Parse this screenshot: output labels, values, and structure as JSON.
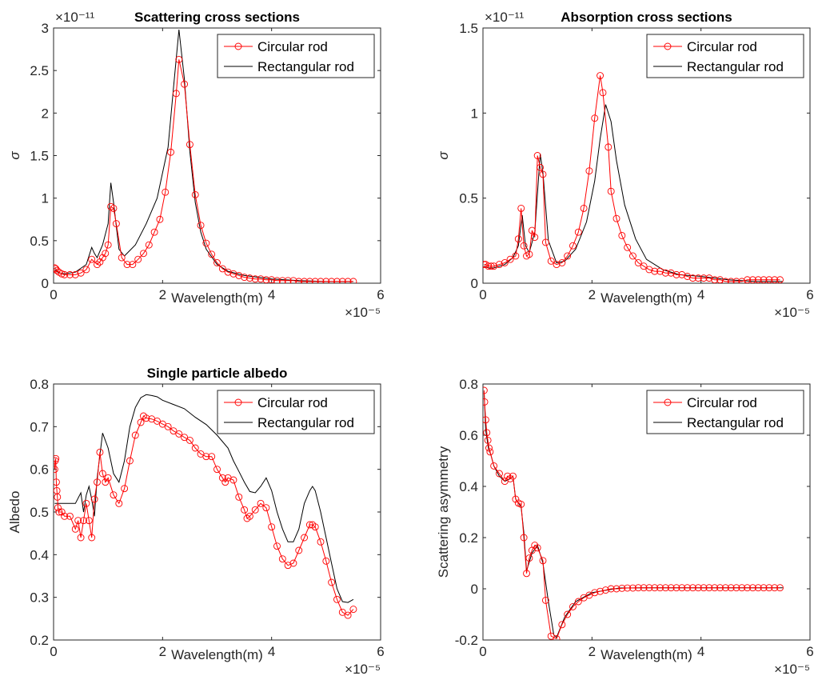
{
  "colors": {
    "circular": "#ff0000",
    "rectangular": "#000000",
    "axis": "#262626",
    "background": "#ffffff"
  },
  "chart_data": [
    {
      "type": "line",
      "title": "Scattering cross sections",
      "xlabel": "Wavelength(m)",
      "ylabel": "σ",
      "x_exponent": "×10⁻⁵",
      "y_exponent": "×10⁻¹¹",
      "xlim": [
        0,
        6
      ],
      "ylim": [
        0,
        3
      ],
      "xticks": [
        "0",
        "2",
        "4",
        "6"
      ],
      "yticks": [
        "0",
        "0.5",
        "1",
        "1.5",
        "2",
        "2.5",
        "3"
      ],
      "legend": "top-right",
      "series": [
        {
          "name": "Circular rod",
          "color": "#ff0000",
          "marker": "circle",
          "x": [
            0.02,
            0.04,
            0.06,
            0.1,
            0.15,
            0.2,
            0.3,
            0.4,
            0.5,
            0.6,
            0.7,
            0.8,
            0.85,
            0.9,
            0.95,
            1.0,
            1.05,
            1.1,
            1.15,
            1.25,
            1.35,
            1.45,
            1.55,
            1.65,
            1.75,
            1.85,
            1.95,
            2.05,
            2.15,
            2.25,
            2.3,
            2.4,
            2.5,
            2.6,
            2.7,
            2.8,
            2.9,
            3.0,
            3.1,
            3.2,
            3.3,
            3.4,
            3.5,
            3.6,
            3.7,
            3.8,
            3.9,
            4.0,
            4.1,
            4.2,
            4.3,
            4.4,
            4.5,
            4.6,
            4.7,
            4.8,
            4.9,
            5.0,
            5.1,
            5.2,
            5.3,
            5.4,
            5.5
          ],
          "y": [
            0.18,
            0.17,
            0.15,
            0.13,
            0.11,
            0.1,
            0.1,
            0.1,
            0.12,
            0.16,
            0.28,
            0.22,
            0.25,
            0.3,
            0.35,
            0.45,
            0.9,
            0.88,
            0.7,
            0.3,
            0.22,
            0.22,
            0.28,
            0.35,
            0.45,
            0.6,
            0.75,
            1.07,
            1.54,
            2.23,
            2.63,
            2.34,
            1.63,
            1.04,
            0.68,
            0.47,
            0.34,
            0.24,
            0.17,
            0.13,
            0.11,
            0.09,
            0.07,
            0.06,
            0.05,
            0.05,
            0.04,
            0.04,
            0.03,
            0.03,
            0.03,
            0.03,
            0.02,
            0.02,
            0.02,
            0.02,
            0.02,
            0.02,
            0.02,
            0.02,
            0.02,
            0.02,
            0.02
          ]
        },
        {
          "name": "Rectangular rod",
          "color": "#000000",
          "marker": "none",
          "x": [
            0.02,
            0.1,
            0.2,
            0.4,
            0.6,
            0.7,
            0.75,
            0.8,
            0.9,
            1.0,
            1.05,
            1.1,
            1.2,
            1.3,
            1.5,
            1.7,
            1.9,
            2.1,
            2.2,
            2.3,
            2.4,
            2.5,
            2.6,
            2.7,
            2.8,
            3.0,
            3.2,
            3.5,
            4.0,
            4.5,
            5.0,
            5.5
          ],
          "y": [
            0.16,
            0.12,
            0.11,
            0.13,
            0.22,
            0.42,
            0.35,
            0.3,
            0.45,
            0.7,
            1.18,
            0.95,
            0.4,
            0.32,
            0.45,
            0.7,
            1.0,
            1.6,
            2.3,
            2.98,
            2.4,
            1.55,
            0.95,
            0.6,
            0.4,
            0.22,
            0.14,
            0.09,
            0.05,
            0.03,
            0.02,
            0.02
          ]
        }
      ]
    },
    {
      "type": "line",
      "title": "Absorption cross sections",
      "xlabel": "Wavelength(m)",
      "ylabel": "σ",
      "x_exponent": "×10⁻⁵",
      "y_exponent": "×10⁻¹¹",
      "xlim": [
        0,
        6
      ],
      "ylim": [
        0,
        1.5
      ],
      "xticks": [
        "0",
        "2",
        "4",
        "6"
      ],
      "yticks": [
        "0",
        "0.5",
        "1",
        "1.5"
      ],
      "legend": "top-right",
      "series": [
        {
          "name": "Circular rod",
          "color": "#ff0000",
          "marker": "circle",
          "x": [
            0.02,
            0.05,
            0.1,
            0.15,
            0.2,
            0.3,
            0.4,
            0.5,
            0.6,
            0.65,
            0.7,
            0.75,
            0.8,
            0.85,
            0.9,
            0.95,
            1.0,
            1.05,
            1.1,
            1.15,
            1.25,
            1.35,
            1.45,
            1.55,
            1.65,
            1.75,
            1.85,
            1.95,
            2.05,
            2.15,
            2.2,
            2.3,
            2.35,
            2.45,
            2.55,
            2.65,
            2.75,
            2.85,
            2.95,
            3.05,
            3.15,
            3.25,
            3.35,
            3.45,
            3.55,
            3.65,
            3.75,
            3.85,
            3.95,
            4.05,
            4.15,
            4.25,
            4.35,
            4.45,
            4.55,
            4.65,
            4.75,
            4.85,
            4.95,
            5.05,
            5.15,
            5.25,
            5.35,
            5.45
          ],
          "y": [
            0.11,
            0.11,
            0.1,
            0.1,
            0.1,
            0.11,
            0.12,
            0.14,
            0.16,
            0.26,
            0.44,
            0.22,
            0.16,
            0.17,
            0.31,
            0.27,
            0.75,
            0.68,
            0.64,
            0.24,
            0.13,
            0.11,
            0.12,
            0.16,
            0.22,
            0.3,
            0.44,
            0.66,
            0.97,
            1.22,
            1.12,
            0.8,
            0.54,
            0.38,
            0.28,
            0.21,
            0.16,
            0.12,
            0.1,
            0.08,
            0.07,
            0.07,
            0.06,
            0.06,
            0.05,
            0.05,
            0.04,
            0.03,
            0.03,
            0.03,
            0.03,
            0.02,
            0.02,
            0.01,
            0.01,
            0.01,
            0.01,
            0.02,
            0.02,
            0.02,
            0.02,
            0.02,
            0.02,
            0.02
          ]
        },
        {
          "name": "Rectangular rod",
          "color": "#000000",
          "marker": "none",
          "x": [
            0.02,
            0.1,
            0.2,
            0.4,
            0.55,
            0.65,
            0.72,
            0.78,
            0.85,
            0.95,
            1.05,
            1.1,
            1.2,
            1.35,
            1.5,
            1.7,
            1.9,
            2.05,
            2.15,
            2.25,
            2.35,
            2.45,
            2.6,
            2.8,
            3.0,
            3.3,
            3.6,
            4.0,
            4.5,
            5.0,
            5.5
          ],
          "y": [
            0.1,
            0.09,
            0.09,
            0.11,
            0.15,
            0.22,
            0.4,
            0.22,
            0.18,
            0.3,
            0.76,
            0.65,
            0.25,
            0.12,
            0.13,
            0.2,
            0.36,
            0.6,
            0.85,
            1.05,
            0.95,
            0.72,
            0.46,
            0.26,
            0.14,
            0.08,
            0.05,
            0.04,
            0.02,
            0.01,
            0.01
          ]
        }
      ]
    },
    {
      "type": "line",
      "title": "Single particle albedo",
      "xlabel": "Wavelength(m)",
      "ylabel": "Albedo",
      "x_exponent": "×10⁻⁵",
      "xlim": [
        0,
        6
      ],
      "ylim": [
        0.2,
        0.8
      ],
      "xticks": [
        "0",
        "2",
        "4",
        "6"
      ],
      "yticks": [
        "0.2",
        "0.3",
        "0.4",
        "0.5",
        "0.6",
        "0.7",
        "0.8"
      ],
      "legend": "top-right",
      "series": [
        {
          "name": "Circular rod",
          "color": "#ff0000",
          "marker": "circle",
          "x": [
            0.02,
            0.03,
            0.04,
            0.05,
            0.06,
            0.07,
            0.08,
            0.1,
            0.15,
            0.2,
            0.3,
            0.4,
            0.45,
            0.5,
            0.55,
            0.6,
            0.65,
            0.7,
            0.75,
            0.8,
            0.85,
            0.9,
            0.95,
            1.0,
            1.1,
            1.2,
            1.3,
            1.4,
            1.5,
            1.6,
            1.65,
            1.7,
            1.8,
            1.9,
            2.0,
            2.1,
            2.2,
            2.3,
            2.4,
            2.5,
            2.6,
            2.7,
            2.8,
            2.9,
            3.0,
            3.1,
            3.15,
            3.2,
            3.3,
            3.4,
            3.5,
            3.55,
            3.6,
            3.7,
            3.8,
            3.9,
            4.0,
            4.1,
            4.2,
            4.3,
            4.4,
            4.5,
            4.6,
            4.7,
            4.75,
            4.8,
            4.9,
            5.0,
            5.1,
            5.2,
            5.3,
            5.4,
            5.5
          ],
          "y": [
            0.6,
            0.62,
            0.625,
            0.57,
            0.55,
            0.535,
            0.51,
            0.5,
            0.5,
            0.49,
            0.49,
            0.46,
            0.48,
            0.44,
            0.48,
            0.52,
            0.48,
            0.44,
            0.53,
            0.57,
            0.64,
            0.59,
            0.57,
            0.58,
            0.54,
            0.52,
            0.555,
            0.62,
            0.68,
            0.71,
            0.725,
            0.72,
            0.718,
            0.713,
            0.706,
            0.7,
            0.69,
            0.683,
            0.675,
            0.668,
            0.65,
            0.636,
            0.63,
            0.63,
            0.6,
            0.58,
            0.57,
            0.58,
            0.575,
            0.535,
            0.505,
            0.485,
            0.49,
            0.505,
            0.52,
            0.51,
            0.465,
            0.42,
            0.39,
            0.375,
            0.38,
            0.41,
            0.44,
            0.47,
            0.47,
            0.465,
            0.43,
            0.385,
            0.335,
            0.295,
            0.265,
            0.258,
            0.272
          ]
        },
        {
          "name": "Rectangular rod",
          "color": "#000000",
          "marker": "none",
          "x": [
            0.02,
            0.05,
            0.1,
            0.2,
            0.3,
            0.4,
            0.5,
            0.55,
            0.6,
            0.65,
            0.7,
            0.75,
            0.8,
            0.9,
            1.0,
            1.1,
            1.2,
            1.3,
            1.4,
            1.5,
            1.6,
            1.7,
            1.8,
            1.9,
            2.0,
            2.2,
            2.4,
            2.6,
            2.8,
            3.0,
            3.2,
            3.3,
            3.4,
            3.5,
            3.6,
            3.7,
            3.8,
            3.9,
            4.0,
            4.1,
            4.2,
            4.3,
            4.4,
            4.5,
            4.6,
            4.7,
            4.75,
            4.8,
            4.9,
            5.0,
            5.1,
            5.2,
            5.3,
            5.4,
            5.5
          ],
          "y": [
            0.52,
            0.52,
            0.52,
            0.52,
            0.52,
            0.52,
            0.545,
            0.5,
            0.54,
            0.56,
            0.53,
            0.49,
            0.58,
            0.685,
            0.65,
            0.59,
            0.57,
            0.62,
            0.7,
            0.745,
            0.768,
            0.775,
            0.773,
            0.77,
            0.762,
            0.752,
            0.742,
            0.722,
            0.705,
            0.68,
            0.65,
            0.62,
            0.595,
            0.57,
            0.548,
            0.545,
            0.56,
            0.58,
            0.55,
            0.5,
            0.46,
            0.43,
            0.43,
            0.46,
            0.52,
            0.55,
            0.56,
            0.55,
            0.5,
            0.44,
            0.38,
            0.32,
            0.29,
            0.288,
            0.295
          ]
        }
      ]
    },
    {
      "type": "line",
      "title": "",
      "xlabel": "Wavelength(m)",
      "ylabel": "Scattering asymmetry",
      "x_exponent": "×10⁻⁵",
      "xlim": [
        0,
        6
      ],
      "ylim": [
        -0.2,
        0.8
      ],
      "xticks": [
        "0",
        "2",
        "4",
        "6"
      ],
      "yticks": [
        "-0.2",
        "0",
        "0.2",
        "0.4",
        "0.6",
        "0.8"
      ],
      "legend": "top-right",
      "series": [
        {
          "name": "Circular rod",
          "color": "#ff0000",
          "marker": "circle",
          "x": [
            0.02,
            0.03,
            0.05,
            0.07,
            0.09,
            0.11,
            0.13,
            0.2,
            0.3,
            0.4,
            0.45,
            0.5,
            0.55,
            0.6,
            0.65,
            0.7,
            0.75,
            0.8,
            0.85,
            0.9,
            0.95,
            1.0,
            1.1,
            1.15,
            1.25,
            1.35,
            1.45,
            1.55,
            1.65,
            1.75,
            1.85,
            1.95,
            2.05,
            2.15,
            2.25,
            2.35,
            2.45,
            2.55,
            2.65,
            2.75,
            2.85,
            2.95,
            3.05,
            3.15,
            3.25,
            3.35,
            3.45,
            3.55,
            3.65,
            3.75,
            3.85,
            3.95,
            4.05,
            4.15,
            4.25,
            4.35,
            4.45,
            4.55,
            4.65,
            4.75,
            4.85,
            4.95,
            5.05,
            5.15,
            5.25,
            5.35,
            5.45
          ],
          "y": [
            0.775,
            0.73,
            0.66,
            0.61,
            0.58,
            0.55,
            0.535,
            0.48,
            0.45,
            0.42,
            0.44,
            0.43,
            0.44,
            0.35,
            0.335,
            0.33,
            0.2,
            0.06,
            0.12,
            0.15,
            0.17,
            0.16,
            0.11,
            -0.045,
            -0.185,
            -0.195,
            -0.14,
            -0.1,
            -0.07,
            -0.05,
            -0.035,
            -0.025,
            -0.015,
            -0.01,
            -0.005,
            0,
            0,
            0.002,
            0.003,
            0.003,
            0.004,
            0.004,
            0.004,
            0.004,
            0.004,
            0.004,
            0.004,
            0.004,
            0.004,
            0.004,
            0.004,
            0.004,
            0.004,
            0.004,
            0.004,
            0.004,
            0.004,
            0.004,
            0.004,
            0.004,
            0.004,
            0.004,
            0.004,
            0.004,
            0.004,
            0.004,
            0.004
          ]
        },
        {
          "name": "Rectangular rod",
          "color": "#000000",
          "marker": "none",
          "x": [
            0.02,
            0.05,
            0.1,
            0.15,
            0.2,
            0.3,
            0.4,
            0.5,
            0.55,
            0.6,
            0.7,
            0.75,
            0.8,
            0.9,
            1.0,
            1.1,
            1.2,
            1.3,
            1.35,
            1.5,
            1.7,
            2.0,
            2.5,
            3.0,
            4.0,
            5.0,
            5.5
          ],
          "y": [
            0.77,
            0.62,
            0.55,
            0.52,
            0.48,
            0.44,
            0.42,
            0.43,
            0.44,
            0.35,
            0.32,
            0.22,
            0.07,
            0.14,
            0.17,
            0.1,
            -0.05,
            -0.18,
            -0.19,
            -0.11,
            -0.05,
            -0.015,
            0.003,
            0.004,
            0.004,
            0.004,
            0.004
          ]
        }
      ]
    }
  ]
}
